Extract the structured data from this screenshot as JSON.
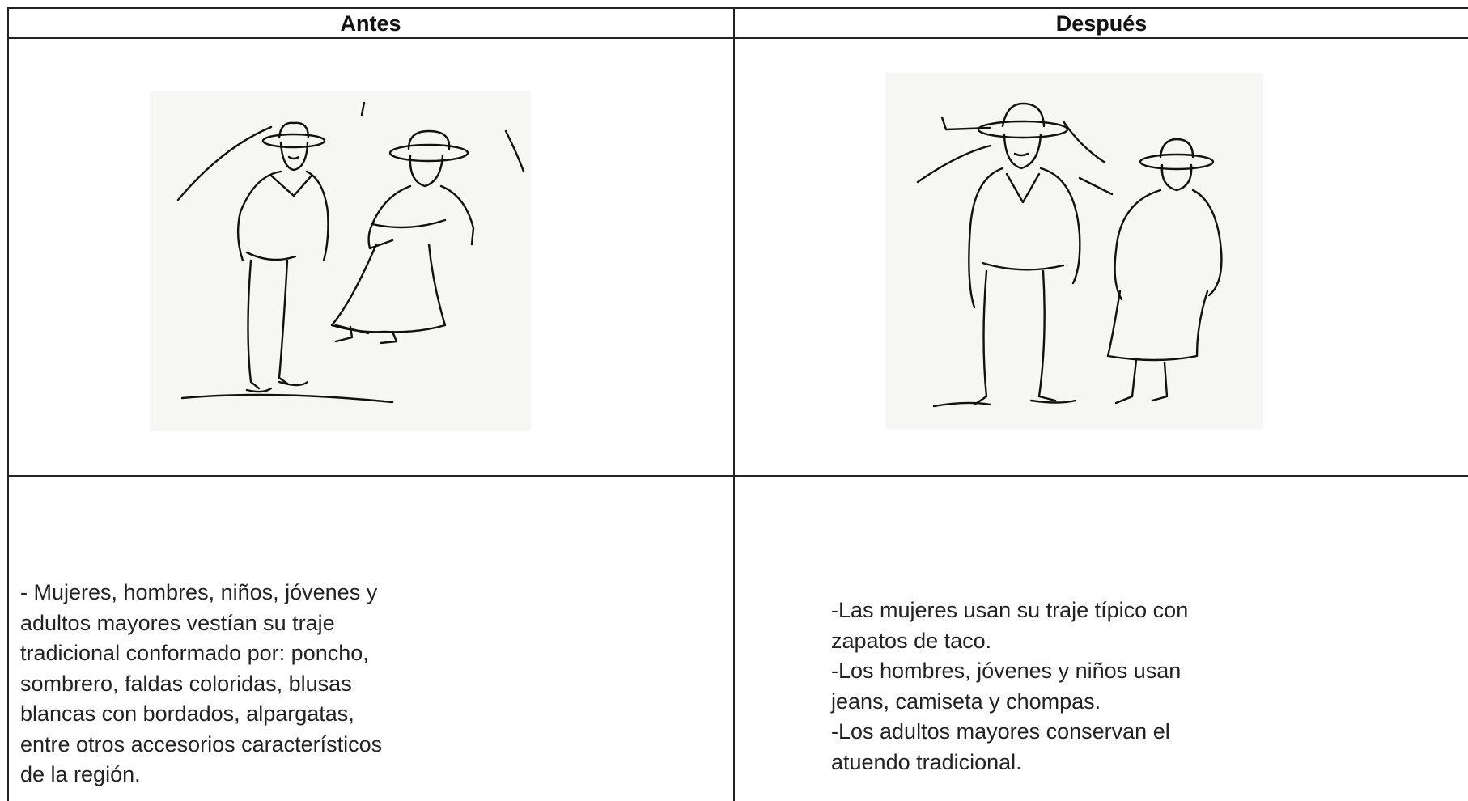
{
  "table": {
    "header": [
      "Antes",
      "Después"
    ],
    "rows": [
      [
        [
          "- Mujeres, hombres, niños, jóvenes y",
          "adultos mayores vestían su traje",
          "tradicional conformado por: poncho,",
          "sombrero, faldas coloridas, blusas",
          "blancas con bordados, alpargatas,",
          "entre otros accesorios característicos",
          "de la región."
        ],
        [
          "-Las mujeres usan su traje típico con",
          "zapatos de taco.",
          "-Los hombres, jóvenes y niños usan",
          "jeans, camiseta y chompas.",
          "-Los adultos mayores conservan el",
          "atuendo tradicional."
        ]
      ]
    ]
  }
}
